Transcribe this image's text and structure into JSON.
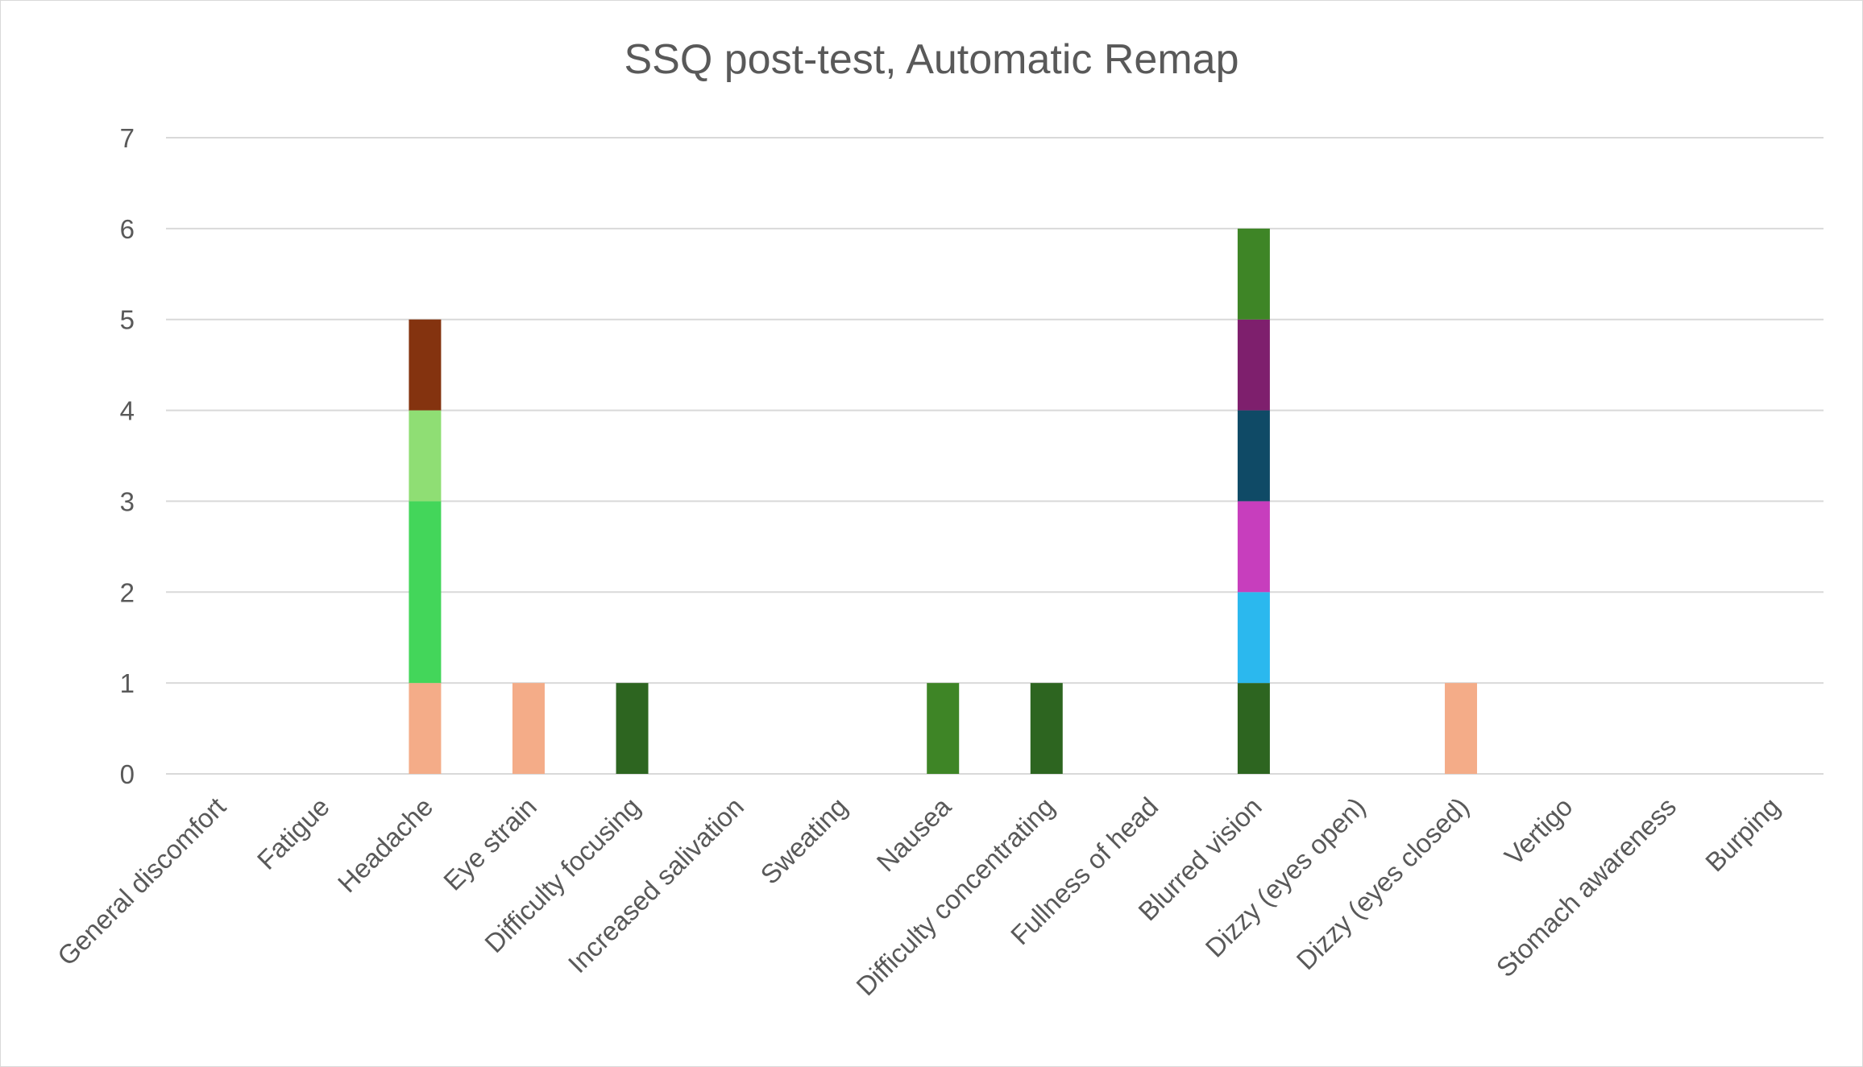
{
  "chart_data": {
    "type": "bar",
    "stacked": true,
    "title": "SSQ post-test, Automatic Remap",
    "xlabel": "",
    "ylabel": "",
    "ylim": [
      0,
      7
    ],
    "yticks": [
      "0",
      "1",
      "2",
      "3",
      "4",
      "5",
      "6",
      "7"
    ],
    "grid": true,
    "legend": "none",
    "categories": [
      "General discomfort",
      "Fatigue",
      "Headache",
      "Eye strain",
      "Difficulty focusing",
      "Increased salivation",
      "Sweating",
      "Nausea",
      "Difficulty concentrating",
      "Fullness of head",
      "Blurred vision",
      "Dizzy (eyes open)",
      "Dizzy (eyes closed)",
      "Vertigo",
      "Stomach awareness",
      "Burping"
    ],
    "series": [
      {
        "color": "#f4ac88",
        "values": [
          0,
          0,
          1,
          1,
          0,
          0,
          0,
          0,
          0,
          0,
          0,
          0,
          1,
          0,
          0,
          0
        ]
      },
      {
        "color": "#2d6520",
        "values": [
          0,
          0,
          0,
          0,
          1,
          0,
          0,
          0,
          1,
          0,
          1,
          0,
          0,
          0,
          0,
          0
        ]
      },
      {
        "color": "#43d65a",
        "values": [
          0,
          0,
          2,
          0,
          0,
          0,
          0,
          0,
          0,
          0,
          0,
          0,
          0,
          0,
          0,
          0
        ]
      },
      {
        "color": "#2bb8ee",
        "values": [
          0,
          0,
          0,
          0,
          0,
          0,
          0,
          0,
          0,
          0,
          1,
          0,
          0,
          0,
          0,
          0
        ]
      },
      {
        "color": "#c73ebd",
        "values": [
          0,
          0,
          0,
          0,
          0,
          0,
          0,
          0,
          0,
          0,
          1,
          0,
          0,
          0,
          0,
          0
        ]
      },
      {
        "color": "#8fde74",
        "values": [
          0,
          0,
          1,
          0,
          0,
          0,
          0,
          0,
          0,
          0,
          0,
          0,
          0,
          0,
          0,
          0
        ]
      },
      {
        "color": "#0f4a66",
        "values": [
          0,
          0,
          0,
          0,
          0,
          0,
          0,
          0,
          0,
          0,
          1,
          0,
          0,
          0,
          0,
          0
        ]
      },
      {
        "color": "#7e1f6d",
        "values": [
          0,
          0,
          0,
          0,
          0,
          0,
          0,
          0,
          0,
          0,
          1,
          0,
          0,
          0,
          0,
          0
        ]
      },
      {
        "color": "#84330f",
        "values": [
          0,
          0,
          1,
          0,
          0,
          0,
          0,
          0,
          0,
          0,
          0,
          0,
          0,
          0,
          0,
          0
        ]
      },
      {
        "color": "#3e8526",
        "values": [
          0,
          0,
          0,
          0,
          0,
          0,
          0,
          1,
          0,
          0,
          1,
          0,
          0,
          0,
          0,
          0
        ]
      }
    ]
  }
}
